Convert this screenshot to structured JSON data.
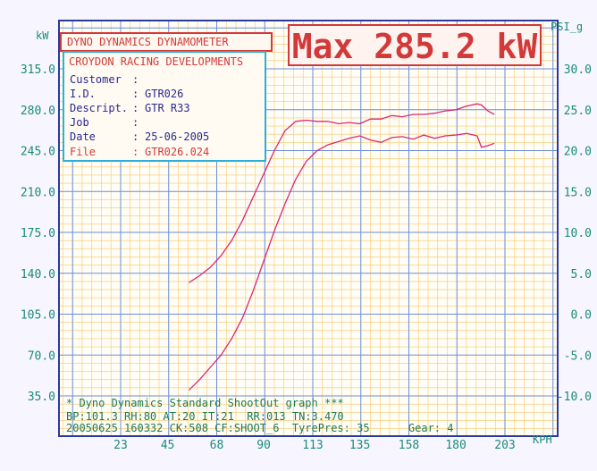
{
  "header": {
    "title": "DYNO DYNAMICS DYNAMOMETER",
    "max_label": "Max 285.2 kW"
  },
  "info": {
    "company": "CROYDON RACING DEVELOPMENTS",
    "rows": [
      {
        "label": "Customer",
        "sep": ":",
        "value": ""
      },
      {
        "label": "I.D.",
        "sep": ":",
        "value": "GTR026"
      },
      {
        "label": "Descript.",
        "sep": ":",
        "value": "GTR R33"
      },
      {
        "label": "Job",
        "sep": ":",
        "value": ""
      },
      {
        "label": "Date",
        "sep": ":",
        "value": "25-06-2005"
      },
      {
        "label": "File",
        "sep": ":",
        "value": "GTR026.024"
      }
    ]
  },
  "footer": {
    "line1": "* Dyno Dynamics Standard ShootOut graph ***",
    "line2": "BP:101.3 RH:80 AT:20 IT:21  RR:013 TN:3.470",
    "line3": "20050625 160332 CK:508 CF:SHOOT_6  TyrePres: 35      Gear: 4"
  },
  "colors": {
    "power_line": "#d8287a",
    "grid_fine": "#f5c86a",
    "grid_major": "#6a8ed8",
    "frame": "#2a3a9a",
    "axis_text": "#1a8c7a"
  },
  "chart_data": {
    "type": "line",
    "title": "Max 285.2 kW",
    "xlabel": "KPH",
    "ylabel_left": "kW",
    "ylabel_right": "PSI_g",
    "x_ticks": [
      "23",
      "45",
      "68",
      "90",
      "113",
      "135",
      "158",
      "180",
      "203"
    ],
    "y_left_ticks": [
      "35.0",
      "70.0",
      "105.0",
      "140.0",
      "175.0",
      "210.0",
      "245.0",
      "280.0",
      "315.0"
    ],
    "y_right_ticks": [
      "-10.0",
      "-5.0",
      "0.0",
      "5.0",
      "10.0",
      "15.0",
      "20.0",
      "25.0",
      "30.0"
    ],
    "xlim": [
      23,
      203
    ],
    "ylim_left": [
      35,
      315
    ],
    "ylim_right": [
      -10,
      30
    ],
    "grid": true,
    "series": [
      {
        "axis": "left",
        "x": [
          55,
          60,
          65,
          70,
          75,
          80,
          85,
          90,
          95,
          100,
          105,
          110,
          115,
          120,
          125,
          130,
          135,
          140,
          145,
          150,
          155,
          160,
          165,
          170,
          175,
          180,
          185,
          190,
          192,
          195,
          198
        ],
        "y": [
          132,
          138,
          145,
          155,
          168,
          185,
          205,
          225,
          245,
          262,
          270,
          271,
          270,
          270,
          268,
          269,
          268,
          272,
          272,
          275,
          274,
          276,
          276,
          277,
          279,
          280,
          283,
          285,
          284,
          279,
          276
        ]
      },
      {
        "axis": "right",
        "x": [
          55,
          60,
          65,
          70,
          75,
          80,
          85,
          90,
          95,
          100,
          105,
          110,
          115,
          120,
          125,
          130,
          135,
          140,
          145,
          150,
          155,
          160,
          165,
          170,
          175,
          180,
          185,
          190,
          192,
          195,
          198
        ],
        "y": [
          -9.3,
          -8.0,
          -6.5,
          -5.0,
          -3.0,
          -0.5,
          2.8,
          6.5,
          10.2,
          13.5,
          16.5,
          18.7,
          20.0,
          20.7,
          21.1,
          21.5,
          21.8,
          21.3,
          21.0,
          21.6,
          21.7,
          21.4,
          21.9,
          21.5,
          21.8,
          21.9,
          22.1,
          21.8,
          20.4,
          20.6,
          20.9
        ]
      }
    ]
  }
}
